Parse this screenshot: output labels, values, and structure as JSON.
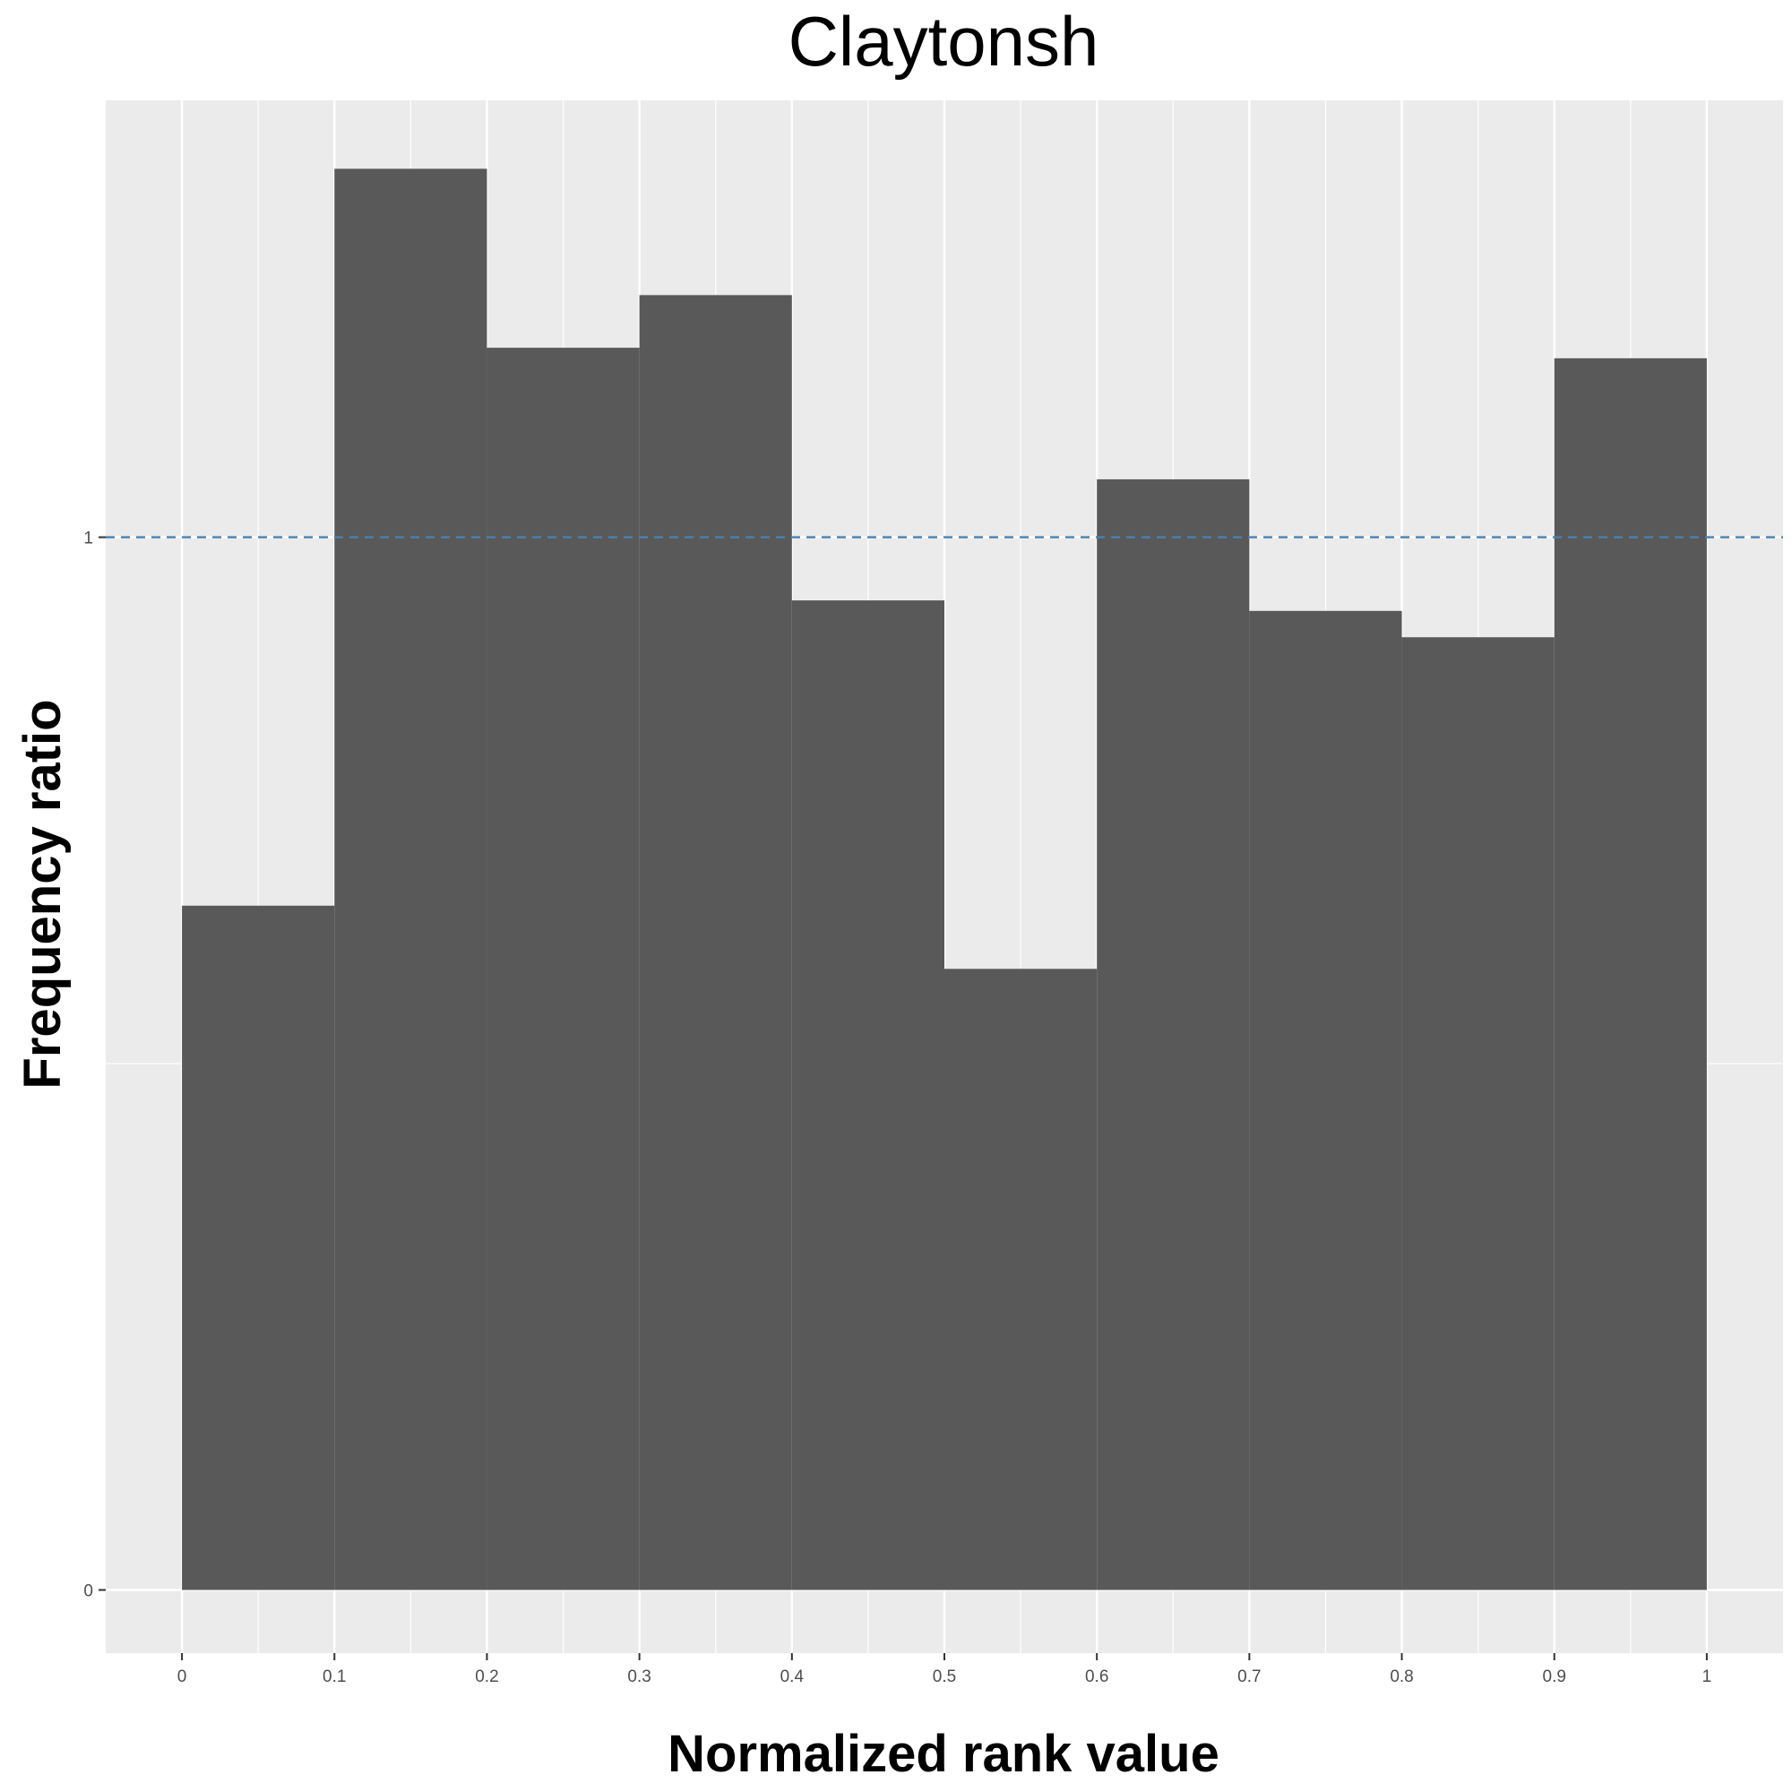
{
  "chart_data": {
    "type": "bar",
    "title": "Claytonsh",
    "xlabel": "Normalized rank value",
    "ylabel": "Frequency ratio",
    "bin_edges": [
      0,
      0.1,
      0.2,
      0.3,
      0.4,
      0.5,
      0.6,
      0.7,
      0.8,
      0.9,
      1.0
    ],
    "values": [
      0.65,
      1.35,
      1.18,
      1.23,
      0.94,
      0.59,
      1.055,
      0.93,
      0.905,
      1.17
    ],
    "xlim": [
      -0.05,
      1.05
    ],
    "ylim": [
      -0.06,
      1.415
    ],
    "x_ticks": [
      0,
      0.1,
      0.2,
      0.3,
      0.4,
      0.5,
      0.6,
      0.7,
      0.8,
      0.9,
      1
    ],
    "x_tick_labels": [
      "0",
      "0.1",
      "0.2",
      "0.3",
      "0.4",
      "0.5",
      "0.6",
      "0.7",
      "0.8",
      "0.9",
      "1"
    ],
    "y_ticks": [
      0,
      1
    ],
    "y_tick_labels": [
      "0",
      "1"
    ],
    "reference_line": {
      "y": 1,
      "style": "dashed",
      "color": "#4682b4"
    },
    "bar_color": "#595959",
    "panel_background": "#ebebeb",
    "grid": true,
    "legend": "none"
  }
}
